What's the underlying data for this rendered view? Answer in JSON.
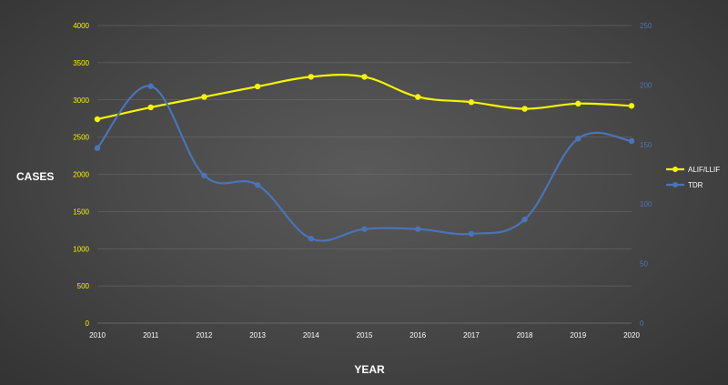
{
  "chart_data": {
    "type": "line",
    "title": "",
    "xlabel": "YEAR",
    "ylabel": "CASES",
    "x": [
      "2010",
      "2011",
      "2012",
      "2013",
      "2014",
      "2015",
      "2016",
      "2017",
      "2018",
      "2019",
      "2020"
    ],
    "ylim": [
      0,
      4000
    ],
    "y2lim": [
      0,
      250
    ],
    "yticks": [
      "0",
      "500",
      "1000",
      "1500",
      "2000",
      "2500",
      "3000",
      "3500",
      "4000"
    ],
    "y2ticks": [
      "0",
      "50",
      "100",
      "150",
      "200",
      "250"
    ],
    "grid": true,
    "legend_position": "right",
    "series": [
      {
        "name": "ALIF/LLIF",
        "axis": "left",
        "color": "#f5f500",
        "values": [
          2740,
          2900,
          3040,
          3180,
          3310,
          3310,
          3040,
          2970,
          2880,
          2950,
          2920
        ]
      },
      {
        "name": "TDR",
        "axis": "right",
        "color": "#4a74b8",
        "values": [
          147,
          199,
          124,
          116,
          71,
          79,
          79,
          75,
          87,
          155,
          153
        ]
      }
    ]
  }
}
